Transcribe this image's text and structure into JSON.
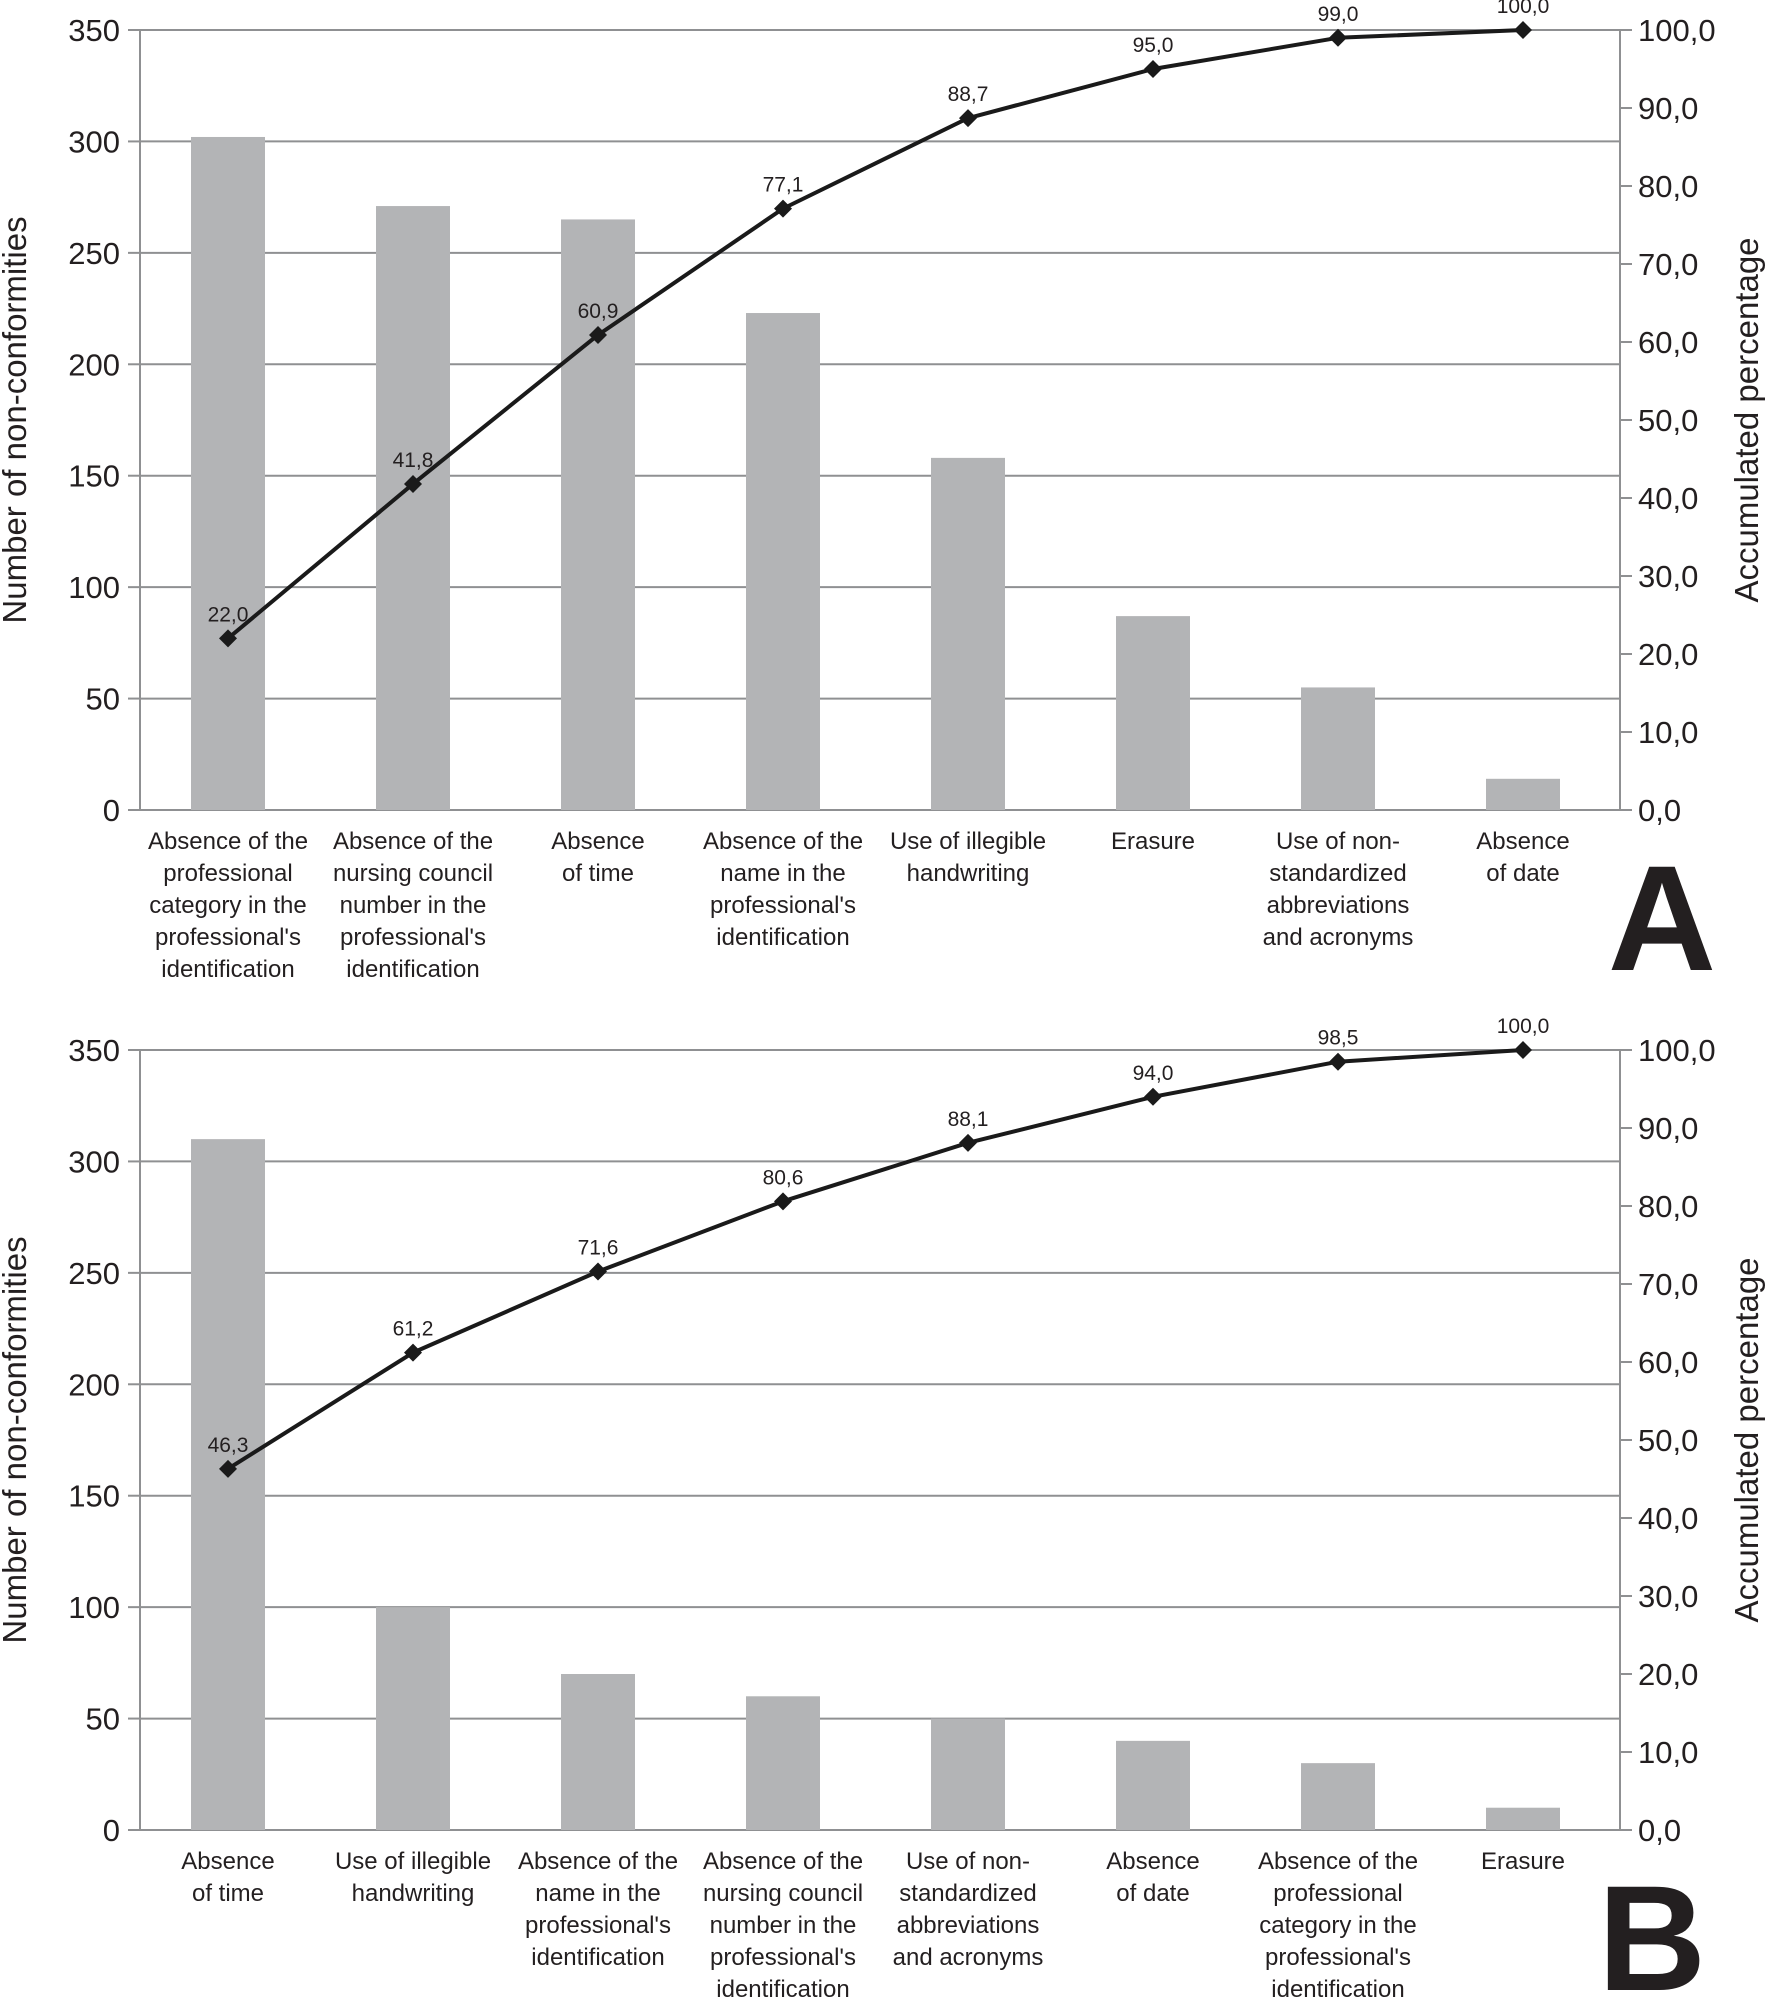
{
  "chart_data": [
    {
      "type": "bar",
      "panel_label": "A",
      "ylabel": "Number of non-conformities",
      "y2label": "Accumulated percentage",
      "ylim": [
        0,
        350
      ],
      "y2lim": [
        0,
        100
      ],
      "yticks": [
        "0",
        "50",
        "100",
        "150",
        "200",
        "250",
        "300",
        "350"
      ],
      "y2ticks": [
        "0,0",
        "10,0",
        "20,0",
        "30,0",
        "40,0",
        "50,0",
        "60,0",
        "70,0",
        "80,0",
        "90,0",
        "100,0"
      ],
      "grid": true,
      "categories": [
        [
          "Absence of the",
          "professional",
          "category in the",
          "professional's",
          "identification"
        ],
        [
          "Absence of the",
          "nursing council",
          "number in the",
          "professional's",
          "identification"
        ],
        [
          "Absence",
          "of time"
        ],
        [
          "Absence of the",
          "name in the",
          "professional's",
          "identification"
        ],
        [
          "Use of illegible",
          "handwriting"
        ],
        [
          "Erasure"
        ],
        [
          "Use of non-",
          "standardized",
          "abbreviations",
          "and acronyms"
        ],
        [
          "Absence",
          "of date"
        ]
      ],
      "values": [
        302,
        271,
        265,
        223,
        158,
        87,
        55,
        14
      ],
      "cumulative": [
        22.0,
        41.8,
        60.9,
        77.1,
        88.7,
        95.0,
        99.0,
        100.0
      ],
      "cumulative_labels": [
        "22,0",
        "41,8",
        "60,9",
        "77,1",
        "88,7",
        "95,0",
        "99,0",
        "100,0"
      ],
      "bar_color": "#b3b4b6",
      "line_color": "#1a1a1a"
    },
    {
      "type": "bar",
      "panel_label": "B",
      "ylabel": "Number of non-conformities",
      "y2label": "Accumulated percentage",
      "ylim": [
        0,
        350
      ],
      "y2lim": [
        0,
        100
      ],
      "yticks": [
        "0",
        "50",
        "100",
        "150",
        "200",
        "250",
        "300",
        "350"
      ],
      "y2ticks": [
        "0,0",
        "10,0",
        "20,0",
        "30,0",
        "40,0",
        "50,0",
        "60,0",
        "70,0",
        "80,0",
        "90,0",
        "100,0"
      ],
      "grid": true,
      "categories": [
        [
          "Absence",
          "of time"
        ],
        [
          "Use of illegible",
          "handwriting"
        ],
        [
          "Absence of the",
          "name in the",
          "professional's",
          "identification"
        ],
        [
          "Absence of the",
          "nursing council",
          "number in the",
          "professional's",
          "identification"
        ],
        [
          "Use of non-",
          "standardized",
          "abbreviations",
          "and acronyms"
        ],
        [
          "Absence",
          "of date"
        ],
        [
          "Absence of the",
          "professional",
          "category in the",
          "professional's",
          "identification"
        ],
        [
          "Erasure"
        ]
      ],
      "values": [
        310,
        100,
        70,
        60,
        50,
        40,
        30,
        10
      ],
      "cumulative": [
        46.3,
        61.2,
        71.6,
        80.6,
        88.1,
        94.0,
        98.5,
        100.0
      ],
      "cumulative_labels": [
        "46,3",
        "61,2",
        "71,6",
        "80,6",
        "88,1",
        "94,0",
        "98,5",
        "100,0"
      ],
      "bar_color": "#b3b4b6",
      "line_color": "#1a1a1a"
    }
  ]
}
